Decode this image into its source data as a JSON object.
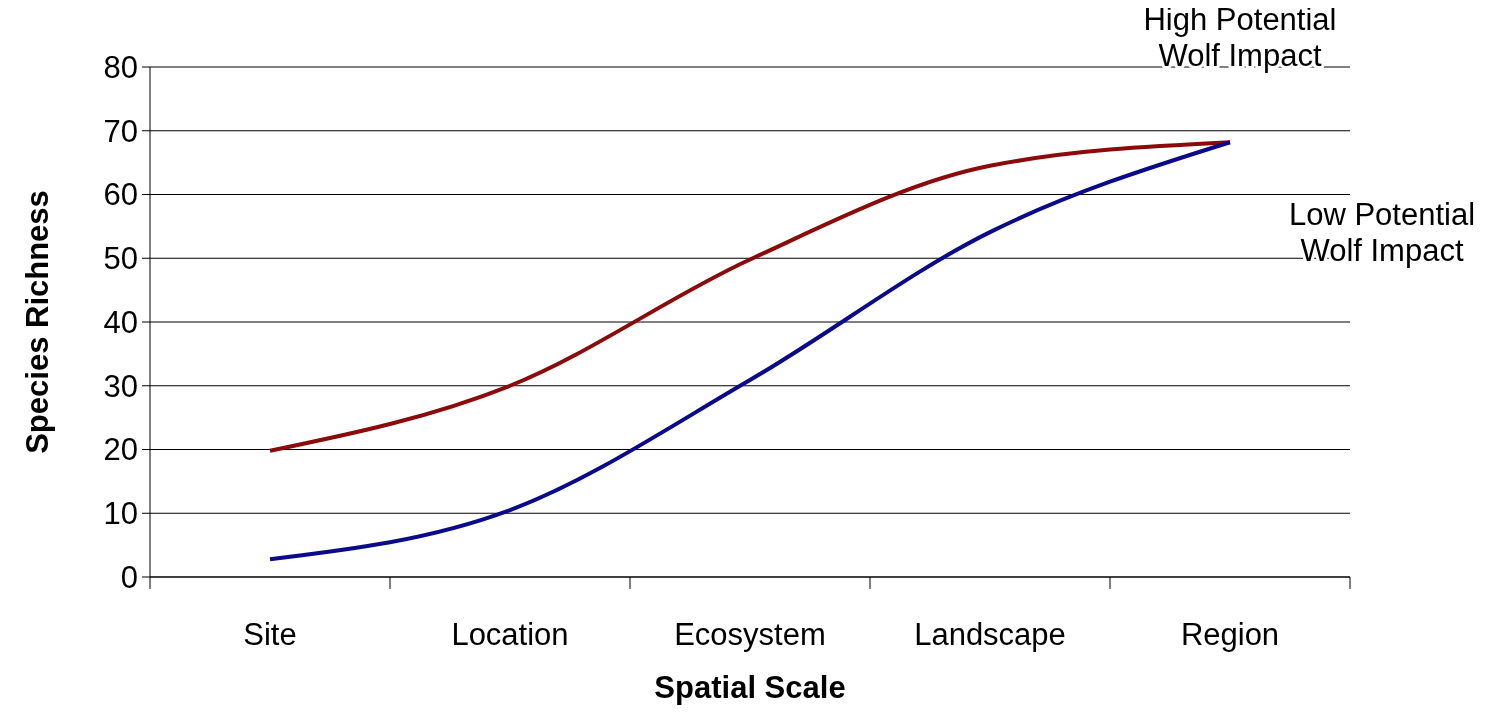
{
  "chart_data": {
    "type": "line",
    "xlabel": "Spatial Scale",
    "ylabel": "Species Richness",
    "categories": [
      "Site",
      "Location",
      "Ecosystem",
      "Landscape",
      "Region"
    ],
    "ylim": [
      0,
      80
    ],
    "yticks": [
      0,
      10,
      20,
      30,
      40,
      50,
      60,
      70,
      80
    ],
    "grid": "y",
    "marker": "none",
    "line_style": "solid",
    "series": [
      {
        "name": "High Potential Wolf Impact",
        "color": "#8b0a0a",
        "values": [
          19.8,
          30,
          49.8,
          64.5,
          68.2
        ]
      },
      {
        "name": "Low Potential Wolf Impact",
        "color": "#0a0a8b",
        "values": [
          2.8,
          10.5,
          30.9,
          54.1,
          68.2
        ]
      }
    ]
  }
}
